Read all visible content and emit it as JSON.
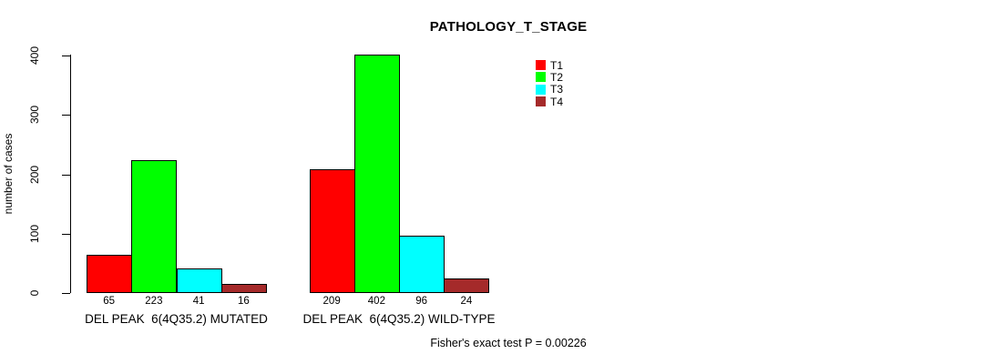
{
  "chart_data": {
    "type": "bar",
    "title": "PATHOLOGY_T_STAGE",
    "xlabel": "",
    "ylabel": "number of cases",
    "ylim": [
      0,
      400
    ],
    "yticks": [
      0,
      100,
      200,
      300,
      400
    ],
    "grid": false,
    "legend_position": "top-right",
    "categories": [
      "DEL PEAK  6(4Q35.2) MUTATED",
      "DEL PEAK  6(4Q35.2) WILD-TYPE"
    ],
    "series": [
      {
        "name": "T1",
        "color": "#FF0000",
        "values": [
          65,
          209
        ]
      },
      {
        "name": "T2",
        "color": "#00FF00",
        "values": [
          223,
          402
        ]
      },
      {
        "name": "T3",
        "color": "#00FFFF",
        "values": [
          41,
          96
        ]
      },
      {
        "name": "T4",
        "color": "#A52A2A",
        "values": [
          16,
          24
        ]
      }
    ],
    "bar_value_labels_shown": true,
    "annotation": "Fisher's exact test P = 0.00226"
  }
}
